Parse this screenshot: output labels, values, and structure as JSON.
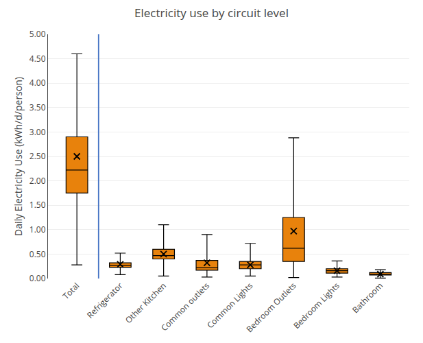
{
  "chart_data": {
    "type": "box",
    "title": "Electricity use by circuit level",
    "ylabel": "Daily Electricity Use (kWh/d/person)",
    "categories": [
      "Total",
      "Refrigerator",
      "Other Kitchen",
      "Common outlets",
      "Common Lights",
      "Bedroom Outlets",
      "Bedroom Lights",
      "Bathroom"
    ],
    "whislo": [
      0.28,
      0.08,
      0.05,
      0.03,
      0.05,
      0.02,
      0.03,
      0.01
    ],
    "q1": [
      1.75,
      0.23,
      0.4,
      0.17,
      0.2,
      0.35,
      0.11,
      0.07
    ],
    "med": [
      2.22,
      0.27,
      0.47,
      0.22,
      0.28,
      0.62,
      0.16,
      0.09
    ],
    "q3": [
      2.9,
      0.32,
      0.6,
      0.37,
      0.35,
      1.25,
      0.2,
      0.12
    ],
    "whishi": [
      4.6,
      0.52,
      1.1,
      0.9,
      0.72,
      2.88,
      0.36,
      0.18
    ],
    "mean": [
      2.5,
      0.29,
      0.5,
      0.32,
      0.28,
      0.97,
      0.16,
      0.09
    ],
    "color": "#E8820C",
    "marker": "x",
    "vline": {
      "x": 1.5,
      "color": "#4472C4"
    },
    "ylim": [
      0.0,
      5.0
    ],
    "yticks": [
      {
        "value": 0.0,
        "label": "0.00"
      },
      {
        "value": 0.5,
        "label": "0.50"
      },
      {
        "value": 1.0,
        "label": "1.00"
      },
      {
        "value": 1.5,
        "label": "1.50"
      },
      {
        "value": 2.0,
        "label": "2.00"
      },
      {
        "value": 2.5,
        "label": "2.50"
      },
      {
        "value": 3.0,
        "label": "3.00"
      },
      {
        "value": 3.5,
        "label": "3.50"
      },
      {
        "value": 4.0,
        "label": "4.00"
      },
      {
        "value": 4.5,
        "label": "4.50"
      },
      {
        "value": 5.0,
        "label": "5.00"
      }
    ],
    "grid": true
  }
}
